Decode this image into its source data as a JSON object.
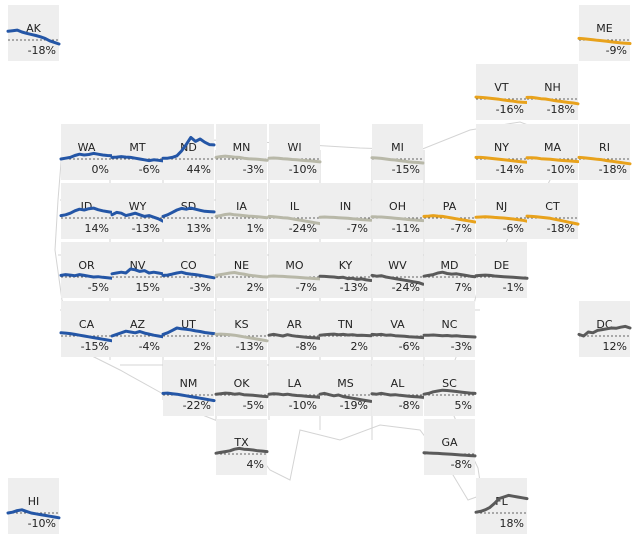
{
  "chart_data": {
    "type": "line",
    "title": "",
    "colors": {
      "west": "#2456a6",
      "northeast": "#e8a21c",
      "midwest": "#b8b8a8",
      "south": "#5a5a5a",
      "tile": "#eeeeee"
    },
    "states": [
      {
        "abbr": "AK",
        "label": "-18%",
        "group": "west",
        "values": [
          0.55,
          0.58,
          0.62,
          0.5,
          0.42,
          0.35,
          0.28,
          0.2,
          0.1,
          -0.05,
          -0.15,
          -0.25
        ]
      },
      {
        "abbr": "ME",
        "label": "-9%",
        "group": "northeast",
        "values": [
          0.1,
          0.08,
          0.05,
          0.02,
          -0.02,
          -0.05,
          -0.08,
          -0.12,
          -0.15,
          -0.18,
          -0.2,
          -0.22
        ]
      },
      {
        "abbr": "VT",
        "label": "-16%",
        "group": "northeast",
        "values": [
          0.12,
          0.1,
          0.08,
          0.05,
          0.02,
          -0.02,
          -0.06,
          -0.1,
          -0.14,
          -0.18,
          -0.2,
          -0.22
        ]
      },
      {
        "abbr": "NH",
        "label": "-18%",
        "group": "northeast",
        "values": [
          0.1,
          0.1,
          0.06,
          0.02,
          0.0,
          -0.05,
          -0.1,
          -0.14,
          -0.18,
          -0.22,
          -0.25,
          -0.3
        ]
      },
      {
        "abbr": "WA",
        "label": "0%",
        "group": "west",
        "values": [
          0.0,
          0.05,
          0.1,
          0.22,
          0.3,
          0.25,
          0.28,
          0.35,
          0.3,
          0.25,
          0.22,
          0.2
        ]
      },
      {
        "abbr": "MT",
        "label": "-6%",
        "group": "west",
        "values": [
          0.1,
          0.12,
          0.15,
          0.12,
          0.1,
          0.05,
          0.0,
          -0.05,
          -0.1,
          -0.05,
          -0.08,
          -0.12
        ]
      },
      {
        "abbr": "ND",
        "label": "44%",
        "group": "west",
        "values": [
          0.05,
          0.05,
          0.1,
          0.2,
          0.5,
          0.9,
          1.35,
          1.1,
          1.25,
          1.05,
          0.9,
          0.88
        ]
      },
      {
        "abbr": "MN",
        "label": "-3%",
        "group": "midwest",
        "values": [
          0.1,
          0.15,
          0.18,
          0.15,
          0.12,
          0.1,
          0.05,
          0.02,
          0.0,
          -0.02,
          -0.05,
          -0.08
        ]
      },
      {
        "abbr": "WI",
        "label": "-10%",
        "group": "midwest",
        "values": [
          0.05,
          0.06,
          0.05,
          0.02,
          0.0,
          -0.03,
          -0.05,
          -0.08,
          -0.1,
          -0.12,
          -0.15,
          -0.18
        ]
      },
      {
        "abbr": "MI",
        "label": "-15%",
        "group": "midwest",
        "values": [
          0.08,
          0.06,
          0.04,
          0.0,
          -0.04,
          -0.06,
          -0.1,
          -0.14,
          -0.18,
          -0.2,
          -0.22,
          -0.25
        ]
      },
      {
        "abbr": "NY",
        "label": "-14%",
        "group": "northeast",
        "values": [
          0.1,
          0.1,
          0.08,
          0.05,
          0.02,
          -0.02,
          -0.05,
          -0.08,
          -0.12,
          -0.15,
          -0.18,
          -0.2
        ]
      },
      {
        "abbr": "MA",
        "label": "-10%",
        "group": "northeast",
        "values": [
          0.08,
          0.08,
          0.06,
          0.02,
          0.0,
          -0.02,
          -0.05,
          -0.08,
          -0.1,
          -0.12,
          -0.14,
          -0.16
        ]
      },
      {
        "abbr": "RI",
        "label": "-18%",
        "group": "northeast",
        "values": [
          0.1,
          0.08,
          0.05,
          0.02,
          -0.02,
          -0.05,
          -0.1,
          -0.14,
          -0.18,
          -0.22,
          -0.26,
          -0.3
        ]
      },
      {
        "abbr": "ID",
        "label": "14%",
        "group": "west",
        "values": [
          0.15,
          0.2,
          0.3,
          0.45,
          0.55,
          0.5,
          0.58,
          0.62,
          0.52,
          0.45,
          0.4,
          0.35
        ]
      },
      {
        "abbr": "WY",
        "label": "-13%",
        "group": "west",
        "values": [
          0.2,
          0.35,
          0.3,
          0.15,
          0.22,
          0.3,
          0.2,
          0.1,
          0.15,
          0.05,
          -0.05,
          -0.2
        ]
      },
      {
        "abbr": "SD",
        "label": "13%",
        "group": "west",
        "values": [
          0.1,
          0.2,
          0.35,
          0.5,
          0.6,
          0.55,
          0.62,
          0.55,
          0.48,
          0.42,
          0.4,
          0.38
        ]
      },
      {
        "abbr": "IA",
        "label": "1%",
        "group": "midwest",
        "values": [
          0.1,
          0.15,
          0.22,
          0.25,
          0.2,
          0.18,
          0.15,
          0.12,
          0.1,
          0.08,
          0.05,
          0.02
        ]
      },
      {
        "abbr": "IL",
        "label": "-24%",
        "group": "midwest",
        "values": [
          0.1,
          0.08,
          0.05,
          0.02,
          0.0,
          -0.05,
          -0.1,
          -0.15,
          -0.2,
          -0.25,
          -0.3,
          -0.35
        ]
      },
      {
        "abbr": "IN",
        "label": "-7%",
        "group": "midwest",
        "values": [
          0.05,
          0.06,
          0.05,
          0.04,
          0.02,
          0.0,
          -0.02,
          -0.05,
          -0.07,
          -0.1,
          -0.12,
          -0.14
        ]
      },
      {
        "abbr": "OH",
        "label": "-11%",
        "group": "midwest",
        "values": [
          0.08,
          0.07,
          0.06,
          0.04,
          0.02,
          -0.01,
          -0.04,
          -0.07,
          -0.1,
          -0.12,
          -0.14,
          -0.16
        ]
      },
      {
        "abbr": "PA",
        "label": "-7%",
        "group": "northeast",
        "values": [
          0.1,
          0.12,
          0.15,
          0.12,
          0.1,
          0.05,
          0.0,
          -0.05,
          -0.1,
          -0.15,
          -0.2,
          -0.25
        ]
      },
      {
        "abbr": "NJ",
        "label": "-6%",
        "group": "northeast",
        "values": [
          0.05,
          0.06,
          0.08,
          0.06,
          0.04,
          0.02,
          0.0,
          -0.03,
          -0.06,
          -0.1,
          -0.14,
          -0.2
        ]
      },
      {
        "abbr": "CT",
        "label": "-18%",
        "group": "northeast",
        "values": [
          0.12,
          0.1,
          0.08,
          0.05,
          0.02,
          -0.02,
          -0.08,
          -0.14,
          -0.2,
          -0.26,
          -0.32,
          -0.38
        ]
      },
      {
        "abbr": "OR",
        "label": "-5%",
        "group": "west",
        "values": [
          0.1,
          0.15,
          0.12,
          0.08,
          0.15,
          0.1,
          0.05,
          0.0,
          0.02,
          -0.02,
          -0.05,
          -0.08
        ]
      },
      {
        "abbr": "NV",
        "label": "15%",
        "group": "west",
        "values": [
          0.2,
          0.25,
          0.3,
          0.25,
          0.5,
          0.45,
          0.35,
          0.4,
          0.25,
          0.3,
          0.25,
          0.2
        ]
      },
      {
        "abbr": "CO",
        "label": "-3%",
        "group": "west",
        "values": [
          0.1,
          0.12,
          0.18,
          0.25,
          0.3,
          0.22,
          0.18,
          0.15,
          0.1,
          0.05,
          0.0,
          -0.05
        ]
      },
      {
        "abbr": "NE",
        "label": "2%",
        "group": "midwest",
        "values": [
          0.1,
          0.15,
          0.2,
          0.25,
          0.28,
          0.22,
          0.18,
          0.12,
          0.08,
          0.05,
          0.02,
          0.0
        ]
      },
      {
        "abbr": "MO",
        "label": "-7%",
        "group": "midwest",
        "values": [
          0.05,
          0.06,
          0.05,
          0.04,
          0.02,
          0.0,
          -0.02,
          -0.04,
          -0.06,
          -0.08,
          -0.1,
          -0.12
        ]
      },
      {
        "abbr": "KY",
        "label": "-13%",
        "group": "south",
        "values": [
          0.05,
          0.04,
          0.02,
          0.0,
          -0.04,
          -0.02,
          -0.1,
          -0.08,
          -0.15,
          -0.12,
          -0.18,
          -0.22
        ]
      },
      {
        "abbr": "WV",
        "label": "-24%",
        "group": "south",
        "values": [
          0.1,
          0.05,
          0.08,
          0.0,
          -0.05,
          -0.1,
          -0.15,
          -0.2,
          -0.25,
          -0.3,
          -0.35,
          -0.45
        ]
      },
      {
        "abbr": "MD",
        "label": "7%",
        "group": "south",
        "values": [
          0.05,
          0.1,
          0.15,
          0.25,
          0.3,
          0.22,
          0.18,
          0.2,
          0.15,
          0.1,
          0.05,
          0.02
        ]
      },
      {
        "abbr": "DE",
        "label": "-1%",
        "group": "south",
        "values": [
          0.08,
          0.1,
          0.12,
          0.1,
          0.06,
          0.04,
          0.02,
          0.0,
          -0.02,
          -0.04,
          -0.06,
          -0.08
        ]
      },
      {
        "abbr": "CA",
        "label": "-15%",
        "group": "west",
        "values": [
          0.2,
          0.18,
          0.15,
          0.1,
          0.05,
          0.0,
          -0.05,
          -0.1,
          -0.15,
          -0.2,
          -0.25,
          -0.3
        ]
      },
      {
        "abbr": "AZ",
        "label": "-4%",
        "group": "west",
        "values": [
          0.0,
          0.1,
          0.2,
          0.3,
          0.25,
          0.2,
          0.28,
          0.18,
          0.12,
          0.05,
          0.0,
          -0.05
        ]
      },
      {
        "abbr": "UT",
        "label": "2%",
        "group": "west",
        "values": [
          0.1,
          0.2,
          0.35,
          0.5,
          0.45,
          0.42,
          0.38,
          0.32,
          0.28,
          0.22,
          0.18,
          0.15
        ]
      },
      {
        "abbr": "KS",
        "label": "-13%",
        "group": "midwest",
        "values": [
          0.1,
          0.12,
          0.1,
          0.08,
          0.05,
          0.0,
          -0.05,
          -0.1,
          -0.15,
          -0.2,
          -0.25,
          -0.3
        ]
      },
      {
        "abbr": "AR",
        "label": "-8%",
        "group": "south",
        "values": [
          0.05,
          0.1,
          0.05,
          0.0,
          0.08,
          0.02,
          -0.02,
          -0.05,
          -0.08,
          -0.1,
          -0.12,
          -0.15
        ]
      },
      {
        "abbr": "TN",
        "label": "2%",
        "group": "south",
        "values": [
          0.05,
          0.08,
          0.1,
          0.12,
          0.08,
          0.1,
          0.06,
          0.08,
          0.04,
          0.05,
          0.03,
          0.02
        ]
      },
      {
        "abbr": "VA",
        "label": "-6%",
        "group": "south",
        "values": [
          0.1,
          0.08,
          0.1,
          0.05,
          0.06,
          0.02,
          0.0,
          -0.02,
          -0.05,
          -0.06,
          -0.08,
          -0.1
        ]
      },
      {
        "abbr": "NC",
        "label": "-3%",
        "group": "south",
        "values": [
          0.05,
          0.05,
          0.06,
          0.04,
          0.02,
          0.03,
          0.0,
          0.01,
          -0.02,
          -0.03,
          -0.05,
          -0.06
        ]
      },
      {
        "abbr": "DC",
        "label": "12%",
        "group": "south",
        "values": [
          0.1,
          0.0,
          0.25,
          0.2,
          0.35,
          0.4,
          0.45,
          0.5,
          0.48,
          0.55,
          0.6,
          0.5
        ]
      },
      {
        "abbr": "NM",
        "label": "-22%",
        "group": "west",
        "values": [
          0.1,
          0.12,
          0.08,
          0.05,
          0.0,
          -0.05,
          -0.1,
          -0.15,
          -0.2,
          -0.25,
          -0.3,
          -0.35
        ]
      },
      {
        "abbr": "OK",
        "label": "-5%",
        "group": "south",
        "values": [
          0.05,
          0.08,
          0.12,
          0.1,
          0.05,
          0.08,
          0.02,
          0.0,
          -0.02,
          -0.05,
          -0.08,
          -0.1
        ]
      },
      {
        "abbr": "LA",
        "label": "-10%",
        "group": "south",
        "values": [
          0.05,
          0.08,
          0.06,
          0.02,
          0.05,
          0.0,
          -0.03,
          -0.05,
          -0.08,
          -0.1,
          -0.12,
          -0.15
        ]
      },
      {
        "abbr": "MS",
        "label": "-19%",
        "group": "south",
        "values": [
          0.05,
          0.1,
          0.02,
          -0.05,
          0.0,
          -0.1,
          -0.15,
          -0.2,
          -0.25,
          -0.3,
          -0.35,
          -0.4
        ]
      },
      {
        "abbr": "AL",
        "label": "-8%",
        "group": "south",
        "values": [
          0.08,
          0.05,
          0.1,
          0.05,
          0.0,
          0.02,
          -0.02,
          -0.05,
          -0.08,
          -0.1,
          -0.12,
          -0.15
        ]
      },
      {
        "abbr": "SC",
        "label": "5%",
        "group": "south",
        "values": [
          0.05,
          0.1,
          0.2,
          0.25,
          0.3,
          0.28,
          0.25,
          0.22,
          0.18,
          0.15,
          0.12,
          0.1
        ]
      },
      {
        "abbr": "TX",
        "label": "4%",
        "group": "south",
        "values": [
          0.05,
          0.1,
          0.15,
          0.2,
          0.3,
          0.35,
          0.3,
          0.28,
          0.25,
          0.2,
          0.18,
          0.15
        ]
      },
      {
        "abbr": "GA",
        "label": "-8%",
        "group": "south",
        "values": [
          0.08,
          0.06,
          0.05,
          0.04,
          0.02,
          0.0,
          -0.02,
          -0.04,
          -0.06,
          -0.08,
          -0.1,
          -0.12
        ]
      },
      {
        "abbr": "HI",
        "label": "-10%",
        "group": "west",
        "values": [
          0.0,
          0.05,
          0.15,
          0.2,
          0.1,
          0.0,
          -0.05,
          -0.1,
          -0.15,
          -0.2,
          -0.25,
          -0.3
        ]
      },
      {
        "abbr": "FL",
        "label": "18%",
        "group": "south",
        "values": [
          0.05,
          0.1,
          0.2,
          0.35,
          0.6,
          0.9,
          1.0,
          1.1,
          1.05,
          1.0,
          0.95,
          0.9
        ]
      }
    ]
  }
}
